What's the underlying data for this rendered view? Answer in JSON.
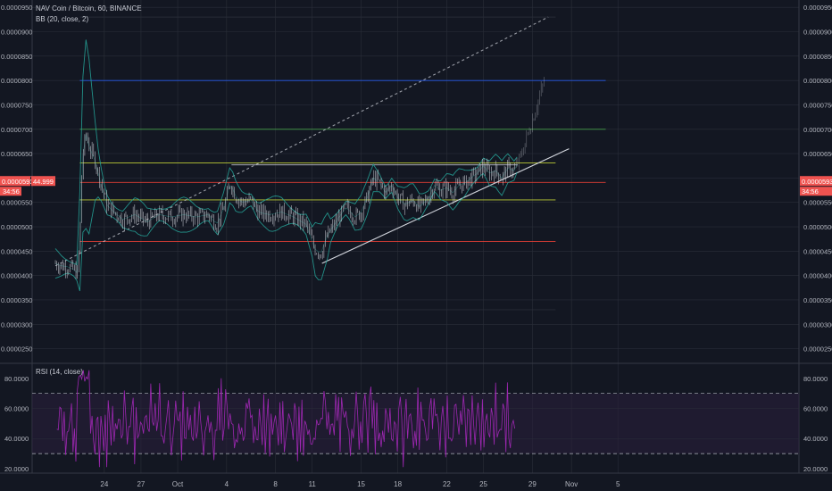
{
  "header": {
    "symbol": "NAV Coin / Bitcoin, 60, BINANCE",
    "bb_label": "BB (20, close, 2)",
    "rsi_label": "RSI (14, close)"
  },
  "price_badge": {
    "price": "0.0000593",
    "rsi": "44.999",
    "timer": "34:56"
  },
  "colors": {
    "background": "#131722",
    "grid": "#2a2e39",
    "candle": "#d1d4dc",
    "bb": "#26a69a",
    "rsi_line": "#9c27b0",
    "rsi_band": "#2a1f3d",
    "badge": "#ef5350",
    "level_blue": "#2962ff",
    "level_green": "#4caf50",
    "level_red": "#f44336",
    "level_yellow": "#cddc39"
  },
  "chart_data": [
    {
      "type": "candlestick",
      "title": "NAV Coin / Bitcoin, 60, BINANCE",
      "indicator": "BB (20, close, 2)",
      "x_tick_labels": [
        "24",
        "27",
        "Oct",
        "4",
        "8",
        "11",
        "15",
        "18",
        "22",
        "25",
        "29",
        "Nov",
        "5"
      ],
      "y_tick_labels": [
        "0.0000950",
        "0.0000900",
        "0.0000850",
        "0.0000800",
        "0.0000750",
        "0.0000700",
        "0.0000650",
        "0.0000600",
        "0.0000550",
        "0.0000500",
        "0.0000450",
        "0.0000400",
        "0.0000350",
        "0.0000300",
        "0.0000250"
      ],
      "ylim": [
        2.2e-05,
        9.65e-05
      ],
      "grid": true,
      "price_path": [
        {
          "d": 20.0,
          "v": 4.25e-05
        },
        {
          "d": 20.5,
          "v": 4.2e-05
        },
        {
          "d": 21.0,
          "v": 4.18e-05
        },
        {
          "d": 21.5,
          "v": 4.12e-05
        },
        {
          "d": 21.8,
          "v": 4.05e-05
        },
        {
          "d": 22.0,
          "v": 4.7e-05
        },
        {
          "d": 22.2,
          "v": 6.4e-05
        },
        {
          "d": 22.5,
          "v": 6.9e-05
        },
        {
          "d": 22.8,
          "v": 6.6e-05
        },
        {
          "d": 23.2,
          "v": 6.4e-05
        },
        {
          "d": 23.6,
          "v": 6e-05
        },
        {
          "d": 24.2,
          "v": 5.45e-05
        },
        {
          "d": 24.8,
          "v": 5.3e-05
        },
        {
          "d": 25.5,
          "v": 5.15e-05
        },
        {
          "d": 26.5,
          "v": 5.25e-05
        },
        {
          "d": 27.5,
          "v": 5.1e-05
        },
        {
          "d": 28.5,
          "v": 5.25e-05
        },
        {
          "d": 29.5,
          "v": 5.2e-05
        },
        {
          "d": 30.5,
          "v": 5.25e-05
        },
        {
          "d": 31.5,
          "v": 5.2e-05
        },
        {
          "d": 32.5,
          "v": 5.25e-05
        },
        {
          "d": 33.2,
          "v": 5.05e-05
        },
        {
          "d": 33.8,
          "v": 5.4e-05
        },
        {
          "d": 34.3,
          "v": 5.9e-05
        },
        {
          "d": 34.8,
          "v": 5.6e-05
        },
        {
          "d": 35.3,
          "v": 5.5e-05
        },
        {
          "d": 36.0,
          "v": 5.55e-05
        },
        {
          "d": 36.6,
          "v": 5.3e-05
        },
        {
          "d": 37.5,
          "v": 5.25e-05
        },
        {
          "d": 38.5,
          "v": 5.3e-05
        },
        {
          "d": 39.5,
          "v": 5.2e-05
        },
        {
          "d": 40.5,
          "v": 5.05e-05
        },
        {
          "d": 41.2,
          "v": 4.55e-05
        },
        {
          "d": 41.7,
          "v": 4.45e-05
        },
        {
          "d": 42.2,
          "v": 4.8e-05
        },
        {
          "d": 42.7,
          "v": 5e-05
        },
        {
          "d": 43.2,
          "v": 5.2e-05
        },
        {
          "d": 43.8,
          "v": 5.4e-05
        },
        {
          "d": 44.5,
          "v": 5.2e-05
        },
        {
          "d": 45.0,
          "v": 5.3e-05
        },
        {
          "d": 45.5,
          "v": 5.6e-05
        },
        {
          "d": 46.0,
          "v": 6e-05
        },
        {
          "d": 46.5,
          "v": 5.9e-05
        },
        {
          "d": 47.0,
          "v": 5.7e-05
        },
        {
          "d": 47.5,
          "v": 5.85e-05
        },
        {
          "d": 48.0,
          "v": 5.6e-05
        },
        {
          "d": 48.6,
          "v": 5.45e-05
        },
        {
          "d": 49.2,
          "v": 5.55e-05
        },
        {
          "d": 49.8,
          "v": 5.4e-05
        },
        {
          "d": 50.5,
          "v": 5.6e-05
        },
        {
          "d": 51.0,
          "v": 5.85e-05
        },
        {
          "d": 51.5,
          "v": 5.75e-05
        },
        {
          "d": 52.0,
          "v": 5.8e-05
        },
        {
          "d": 52.5,
          "v": 5.7e-05
        },
        {
          "d": 53.0,
          "v": 5.85e-05
        },
        {
          "d": 53.5,
          "v": 5.9e-05
        },
        {
          "d": 54.0,
          "v": 6e-05
        },
        {
          "d": 54.5,
          "v": 6.1e-05
        },
        {
          "d": 55.0,
          "v": 6.25e-05
        },
        {
          "d": 55.5,
          "v": 6.1e-05
        },
        {
          "d": 56.0,
          "v": 6.15e-05
        },
        {
          "d": 56.5,
          "v": 6e-05
        },
        {
          "d": 57.0,
          "v": 6.2e-05
        },
        {
          "d": 57.5,
          "v": 6.15e-05
        },
        {
          "d": 58.0,
          "v": 6.4e-05
        },
        {
          "d": 58.5,
          "v": 6.8e-05
        },
        {
          "d": 59.0,
          "v": 7.2e-05
        },
        {
          "d": 59.5,
          "v": 7.6e-05
        },
        {
          "d": 60.0,
          "v": 8e-05
        }
      ],
      "bb_width": 3e-06,
      "levels": [
        {
          "v": 9.3e-05,
          "d1": 22.0,
          "d2": 60.9,
          "color_key": "grid"
        },
        {
          "v": 8e-05,
          "d1": 22.0,
          "d2": 65.0,
          "color_key": "level_blue"
        },
        {
          "v": 7e-05,
          "d1": 22.0,
          "d2": 65.0,
          "color_key": "level_green"
        },
        {
          "v": 6.31e-05,
          "d1": 22.0,
          "d2": 60.9,
          "color_key": "level_yellow"
        },
        {
          "v": 6.27e-05,
          "d1": 34.4,
          "d2": 57.8,
          "color_key": "candle"
        },
        {
          "v": 5.91e-05,
          "d1": 22.0,
          "d2": 65.0,
          "color_key": "level_red"
        },
        {
          "v": 5.55e-05,
          "d1": 22.0,
          "d2": 60.9,
          "color_key": "level_yellow"
        },
        {
          "v": 4.7e-05,
          "d1": 22.0,
          "d2": 60.9,
          "color_key": "level_red"
        },
        {
          "v": 3.3e-05,
          "d1": 22.0,
          "d2": 60.9,
          "color_key": "grid"
        }
      ],
      "trendlines": [
        {
          "d1": 20.0,
          "v1": 4.2e-05,
          "d2": 60.3,
          "v2": 9.3e-05,
          "dashed": true
        },
        {
          "d1": 41.8,
          "v1": 4.25e-05,
          "d2": 62.0,
          "v2": 6.6e-05,
          "dashed": false
        }
      ]
    },
    {
      "type": "line",
      "title": "RSI (14, close)",
      "y_tick_labels": [
        "80.0000",
        "60.0000",
        "40.0000",
        "20.0000"
      ],
      "ylim": [
        17,
        90
      ],
      "band": [
        30,
        70
      ],
      "grid": true
    }
  ]
}
